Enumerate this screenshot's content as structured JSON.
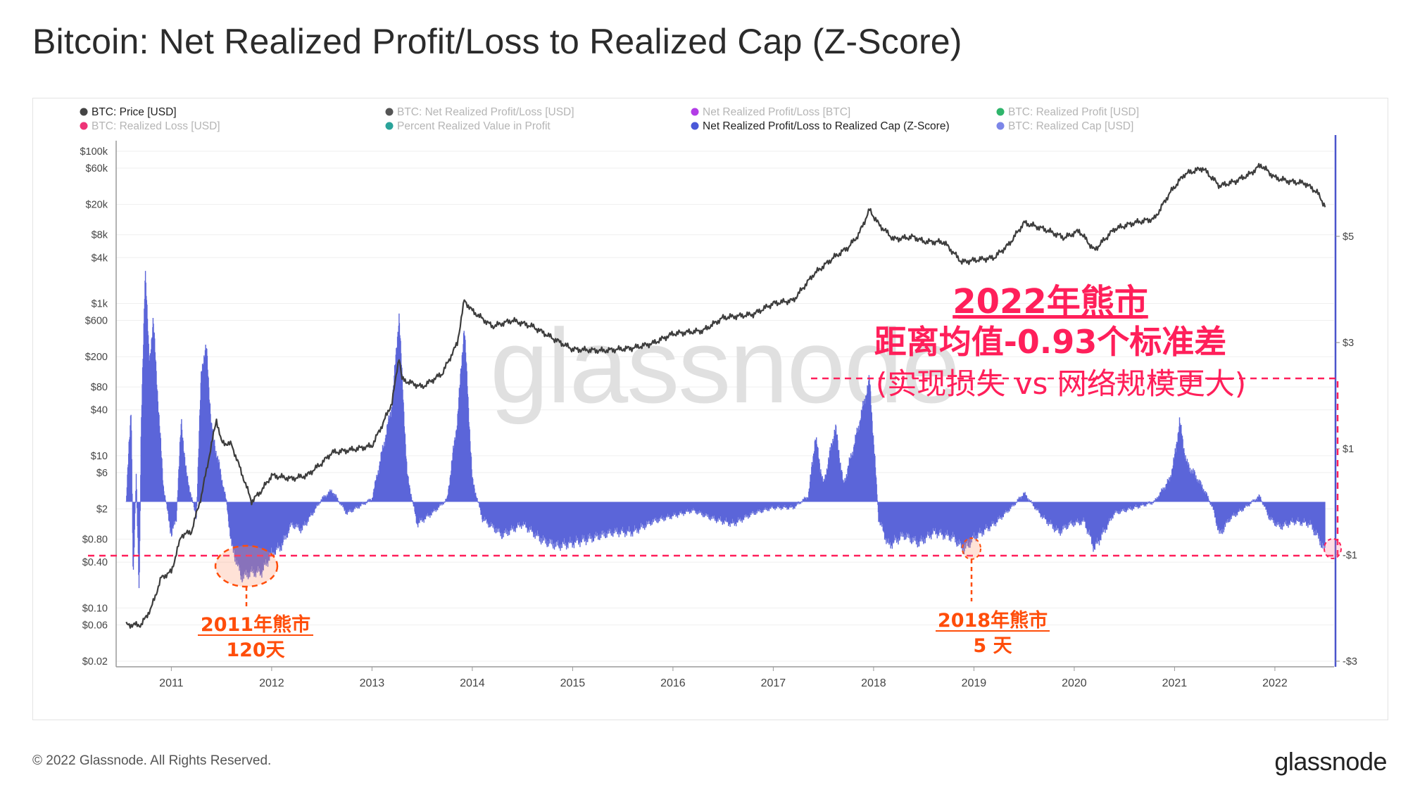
{
  "title": "Bitcoin: Net Realized Profit/Loss to Realized Cap (Z-Score)",
  "copyright": "© 2022 Glassnode. All Rights Reserved.",
  "brand": "glassnode",
  "watermark": "glassnode",
  "colors": {
    "price": "#3d3d3d",
    "zscore": "#5b65d9",
    "annotation_red": "#ff1f5a",
    "annotation_orange": "#ff4d0a",
    "right_axis": "#4a55cc"
  },
  "legend": [
    {
      "label": "BTC: Price [USD]",
      "color": "#444444",
      "active": true
    },
    {
      "label": "BTC: Net Realized Profit/Loss [USD]",
      "color": "#555555",
      "active": false
    },
    {
      "label": "Net Realized Profit/Loss [BTC]",
      "color": "#b23ce6",
      "active": false
    },
    {
      "label": "BTC: Realized Profit [USD]",
      "color": "#2fb56b",
      "active": false
    },
    {
      "label": "BTC: Realized Loss [USD]",
      "color": "#ee3377",
      "active": false
    },
    {
      "label": "Percent Realized Value in Profit",
      "color": "#2aa39a",
      "active": false
    },
    {
      "label": "Net Realized Profit/Loss to Realized Cap (Z-Score)",
      "color": "#4a58d8",
      "active": true
    },
    {
      "label": "BTC: Realized Cap [USD]",
      "color": "#7c86e8",
      "active": false
    }
  ],
  "annotations": {
    "main_line1": "2022年熊市",
    "main_line2": "距离均值-0.93个标准差",
    "main_line3": "(实现损失 vs 网络规模更大)",
    "bear2011_line1": "2011年熊市",
    "bear2011_line2": "120天",
    "bear2018_line1": "2018年熊市",
    "bear2018_line2": "5 天"
  },
  "chart_data": {
    "type": "line",
    "title": "Bitcoin: Net Realized Profit/Loss to Realized Cap (Z-Score)",
    "x_ticks": [
      "2011",
      "2012",
      "2013",
      "2014",
      "2015",
      "2016",
      "2017",
      "2018",
      "2019",
      "2020",
      "2021",
      "2022"
    ],
    "x_range": [
      2010.45,
      2022.59
    ],
    "left_axis": {
      "scale": "log",
      "ticks": [
        "$100k",
        "$60k",
        "$20k",
        "$8k",
        "$4k",
        "$1k",
        "$600",
        "$200",
        "$80",
        "$40",
        "$10",
        "$6",
        "$2",
        "$0.80",
        "$0.40",
        "$0.10",
        "$0.06",
        "$0.02"
      ],
      "tick_values": [
        100000,
        60000,
        20000,
        8000,
        4000,
        1000,
        600,
        200,
        80,
        40,
        10,
        6,
        2,
        0.8,
        0.4,
        0.1,
        0.06,
        0.02
      ],
      "range": [
        0.02,
        100000
      ]
    },
    "right_axis": {
      "scale": "linear",
      "ticks": [
        "$5",
        "$3",
        "$1",
        "-$1",
        "-$3"
      ],
      "tick_values": [
        5,
        3,
        1,
        -1,
        -3
      ],
      "range": [
        -3,
        6.6
      ]
    },
    "reference_line": -0.93,
    "series": [
      {
        "name": "BTC: Price [USD]",
        "axis": "left",
        "points": [
          [
            2010.55,
            0.06
          ],
          [
            2010.7,
            0.06
          ],
          [
            2010.8,
            0.1
          ],
          [
            2010.9,
            0.25
          ],
          [
            2011.0,
            0.3
          ],
          [
            2011.1,
            0.9
          ],
          [
            2011.2,
            1.0
          ],
          [
            2011.3,
            3
          ],
          [
            2011.45,
            30
          ],
          [
            2011.5,
            15
          ],
          [
            2011.6,
            14
          ],
          [
            2011.7,
            6
          ],
          [
            2011.8,
            2.5
          ],
          [
            2011.9,
            3.5
          ],
          [
            2012.0,
            5.5
          ],
          [
            2012.2,
            5
          ],
          [
            2012.35,
            5.5
          ],
          [
            2012.5,
            8
          ],
          [
            2012.6,
            11
          ],
          [
            2012.8,
            12
          ],
          [
            2013.0,
            13.5
          ],
          [
            2013.1,
            25
          ],
          [
            2013.2,
            50
          ],
          [
            2013.27,
            200
          ],
          [
            2013.3,
            100
          ],
          [
            2013.5,
            80
          ],
          [
            2013.7,
            120
          ],
          [
            2013.85,
            300
          ],
          [
            2013.92,
            1100
          ],
          [
            2014.0,
            800
          ],
          [
            2014.2,
            500
          ],
          [
            2014.4,
            600
          ],
          [
            2014.6,
            500
          ],
          [
            2014.8,
            350
          ],
          [
            2015.0,
            250
          ],
          [
            2015.3,
            240
          ],
          [
            2015.6,
            260
          ],
          [
            2015.8,
            300
          ],
          [
            2016.0,
            400
          ],
          [
            2016.3,
            440
          ],
          [
            2016.5,
            650
          ],
          [
            2016.8,
            720
          ],
          [
            2017.0,
            1000
          ],
          [
            2017.2,
            1100
          ],
          [
            2017.4,
            2400
          ],
          [
            2017.6,
            4000
          ],
          [
            2017.75,
            5500
          ],
          [
            2017.85,
            8000
          ],
          [
            2017.96,
            17000
          ],
          [
            2018.05,
            11000
          ],
          [
            2018.2,
            7000
          ],
          [
            2018.4,
            7500
          ],
          [
            2018.5,
            6500
          ],
          [
            2018.7,
            6400
          ],
          [
            2018.88,
            3500
          ],
          [
            2019.0,
            3700
          ],
          [
            2019.2,
            4000
          ],
          [
            2019.35,
            6000
          ],
          [
            2019.5,
            11500
          ],
          [
            2019.7,
            9500
          ],
          [
            2019.9,
            7300
          ],
          [
            2020.05,
            9000
          ],
          [
            2020.2,
            5000
          ],
          [
            2020.4,
            9500
          ],
          [
            2020.6,
            11500
          ],
          [
            2020.8,
            13000
          ],
          [
            2020.95,
            28000
          ],
          [
            2021.1,
            50000
          ],
          [
            2021.28,
            60000
          ],
          [
            2021.45,
            35000
          ],
          [
            2021.6,
            40000
          ],
          [
            2021.75,
            50000
          ],
          [
            2021.86,
            66000
          ],
          [
            2022.0,
            45000
          ],
          [
            2022.15,
            40000
          ],
          [
            2022.3,
            38000
          ],
          [
            2022.42,
            29000
          ],
          [
            2022.5,
            19000
          ]
        ]
      },
      {
        "name": "Net Realized Profit/Loss to Realized Cap (Z-Score)",
        "axis": "right",
        "points": [
          [
            2010.55,
            0
          ],
          [
            2010.6,
            1.8
          ],
          [
            2010.62,
            -1.5
          ],
          [
            2010.65,
            0.5
          ],
          [
            2010.68,
            -1.7
          ],
          [
            2010.7,
            1.4
          ],
          [
            2010.74,
            4.4
          ],
          [
            2010.78,
            2.6
          ],
          [
            2010.82,
            3.4
          ],
          [
            2010.88,
            1.5
          ],
          [
            2010.92,
            0.3
          ],
          [
            2011.0,
            -0.6
          ],
          [
            2011.05,
            -0.3
          ],
          [
            2011.1,
            1.5
          ],
          [
            2011.15,
            0.5
          ],
          [
            2011.2,
            0.1
          ],
          [
            2011.25,
            -0.3
          ],
          [
            2011.3,
            2.5
          ],
          [
            2011.35,
            2.9
          ],
          [
            2011.4,
            1.4
          ],
          [
            2011.45,
            0.9
          ],
          [
            2011.55,
            0
          ],
          [
            2011.6,
            -0.8
          ],
          [
            2011.7,
            -1.4
          ],
          [
            2011.8,
            -1.3
          ],
          [
            2011.9,
            -1.3
          ],
          [
            2012.0,
            -0.95
          ],
          [
            2012.1,
            -0.8
          ],
          [
            2012.2,
            -0.4
          ],
          [
            2012.3,
            -0.5
          ],
          [
            2012.5,
            0.05
          ],
          [
            2012.6,
            0.2
          ],
          [
            2012.75,
            -0.2
          ],
          [
            2012.9,
            -0.05
          ],
          [
            2013.0,
            0.05
          ],
          [
            2013.1,
            0.9
          ],
          [
            2013.2,
            1.8
          ],
          [
            2013.27,
            3.5
          ],
          [
            2013.35,
            0.5
          ],
          [
            2013.45,
            -0.4
          ],
          [
            2013.6,
            -0.2
          ],
          [
            2013.75,
            0.05
          ],
          [
            2013.85,
            1.5
          ],
          [
            2013.92,
            3.3
          ],
          [
            2014.0,
            0.4
          ],
          [
            2014.1,
            -0.3
          ],
          [
            2014.3,
            -0.6
          ],
          [
            2014.5,
            -0.4
          ],
          [
            2014.7,
            -0.7
          ],
          [
            2014.85,
            -0.8
          ],
          [
            2015.0,
            -0.75
          ],
          [
            2015.2,
            -0.65
          ],
          [
            2015.4,
            -0.55
          ],
          [
            2015.6,
            -0.55
          ],
          [
            2015.8,
            -0.35
          ],
          [
            2016.0,
            -0.25
          ],
          [
            2016.2,
            -0.15
          ],
          [
            2016.4,
            -0.3
          ],
          [
            2016.6,
            -0.4
          ],
          [
            2016.8,
            -0.2
          ],
          [
            2017.0,
            -0.1
          ],
          [
            2017.2,
            -0.1
          ],
          [
            2017.35,
            0.1
          ],
          [
            2017.42,
            1.2
          ],
          [
            2017.5,
            0.3
          ],
          [
            2017.62,
            1.4
          ],
          [
            2017.7,
            0.3
          ],
          [
            2017.8,
            1.0
          ],
          [
            2017.96,
            2.3
          ],
          [
            2018.05,
            -0.3
          ],
          [
            2018.15,
            -0.8
          ],
          [
            2018.3,
            -0.6
          ],
          [
            2018.45,
            -0.75
          ],
          [
            2018.6,
            -0.55
          ],
          [
            2018.8,
            -0.65
          ],
          [
            2018.9,
            -0.88
          ],
          [
            2019.0,
            -0.65
          ],
          [
            2019.2,
            -0.4
          ],
          [
            2019.4,
            -0.05
          ],
          [
            2019.5,
            0.15
          ],
          [
            2019.7,
            -0.3
          ],
          [
            2019.85,
            -0.55
          ],
          [
            2019.95,
            -0.4
          ],
          [
            2020.1,
            -0.35
          ],
          [
            2020.2,
            -0.85
          ],
          [
            2020.4,
            -0.2
          ],
          [
            2020.6,
            -0.1
          ],
          [
            2020.8,
            0
          ],
          [
            2020.95,
            0.4
          ],
          [
            2021.0,
            0.8
          ],
          [
            2021.05,
            1.5
          ],
          [
            2021.12,
            0.7
          ],
          [
            2021.2,
            0.5
          ],
          [
            2021.3,
            0.2
          ],
          [
            2021.38,
            -0.1
          ],
          [
            2021.45,
            -0.6
          ],
          [
            2021.55,
            -0.3
          ],
          [
            2021.7,
            -0.1
          ],
          [
            2021.85,
            0.1
          ],
          [
            2021.95,
            -0.3
          ],
          [
            2022.05,
            -0.45
          ],
          [
            2022.2,
            -0.35
          ],
          [
            2022.35,
            -0.4
          ],
          [
            2022.45,
            -0.7
          ],
          [
            2022.5,
            -0.93
          ]
        ]
      }
    ]
  }
}
